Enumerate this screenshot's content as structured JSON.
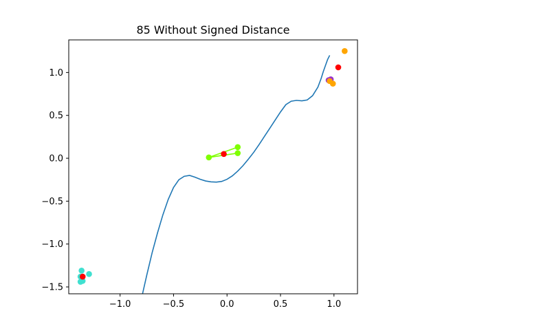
{
  "chart_data": {
    "type": "line",
    "title": "85 Without Signed Distance",
    "xlabel": "",
    "ylabel": "",
    "xlim": [
      -1.48,
      1.22
    ],
    "ylim": [
      -1.58,
      1.38
    ],
    "xticks": [
      -1.0,
      -0.5,
      0.0,
      0.5,
      1.0
    ],
    "xtick_labels": [
      "−1.0",
      "−0.5",
      "0.0",
      "0.5",
      "1.0"
    ],
    "yticks": [
      -1.5,
      -1.0,
      -0.5,
      0.0,
      0.5,
      1.0
    ],
    "ytick_labels": [
      "−1.5",
      "−1.0",
      "−0.5",
      "0.0",
      "0.5",
      "1.0"
    ],
    "grid": false,
    "legend": "none",
    "curve": {
      "color": "#1f77b4",
      "x": [
        -0.79,
        -0.75,
        -0.7,
        -0.65,
        -0.6,
        -0.55,
        -0.5,
        -0.45,
        -0.4,
        -0.35,
        -0.3,
        -0.25,
        -0.2,
        -0.15,
        -0.1,
        -0.05,
        0.0,
        0.05,
        0.1,
        0.15,
        0.2,
        0.25,
        0.3,
        0.35,
        0.4,
        0.45,
        0.5,
        0.55,
        0.6,
        0.65,
        0.7,
        0.75,
        0.8,
        0.85,
        0.88,
        0.9,
        0.92,
        0.94,
        0.96
      ],
      "y": [
        -1.58,
        -1.36,
        -1.1,
        -0.87,
        -0.66,
        -0.48,
        -0.34,
        -0.25,
        -0.21,
        -0.2,
        -0.22,
        -0.245,
        -0.265,
        -0.275,
        -0.278,
        -0.27,
        -0.245,
        -0.205,
        -0.15,
        -0.085,
        -0.01,
        0.07,
        0.16,
        0.255,
        0.35,
        0.445,
        0.54,
        0.625,
        0.665,
        0.675,
        0.67,
        0.68,
        0.73,
        0.83,
        0.93,
        1.01,
        1.08,
        1.15,
        1.2
      ]
    },
    "point_groups": [
      {
        "color": "#40e0d0",
        "points": [
          [
            -1.36,
            -1.31
          ],
          [
            -1.37,
            -1.38
          ],
          [
            -1.35,
            -1.43
          ],
          [
            -1.37,
            -1.44
          ],
          [
            -1.29,
            -1.35
          ]
        ]
      },
      {
        "color": "#7fff00",
        "points": [
          [
            -0.17,
            0.01
          ],
          [
            0.1,
            0.06
          ],
          [
            0.1,
            0.13
          ]
        ],
        "segments": [
          [
            [
              -0.17,
              0.01
            ],
            [
              0.1,
              0.13
            ]
          ],
          [
            [
              -0.17,
              0.01
            ],
            [
              0.1,
              0.06
            ]
          ]
        ]
      },
      {
        "color": "#9932cc",
        "points": [
          [
            0.95,
            0.91
          ],
          [
            0.97,
            0.92
          ]
        ]
      },
      {
        "color": "#ffa500",
        "points": [
          [
            1.1,
            1.25
          ],
          [
            0.99,
            0.87
          ],
          [
            0.96,
            0.9
          ]
        ]
      },
      {
        "color": "#ff0000",
        "points": [
          [
            -1.35,
            -1.38
          ],
          [
            -0.03,
            0.05
          ],
          [
            1.04,
            1.06
          ]
        ]
      }
    ]
  }
}
